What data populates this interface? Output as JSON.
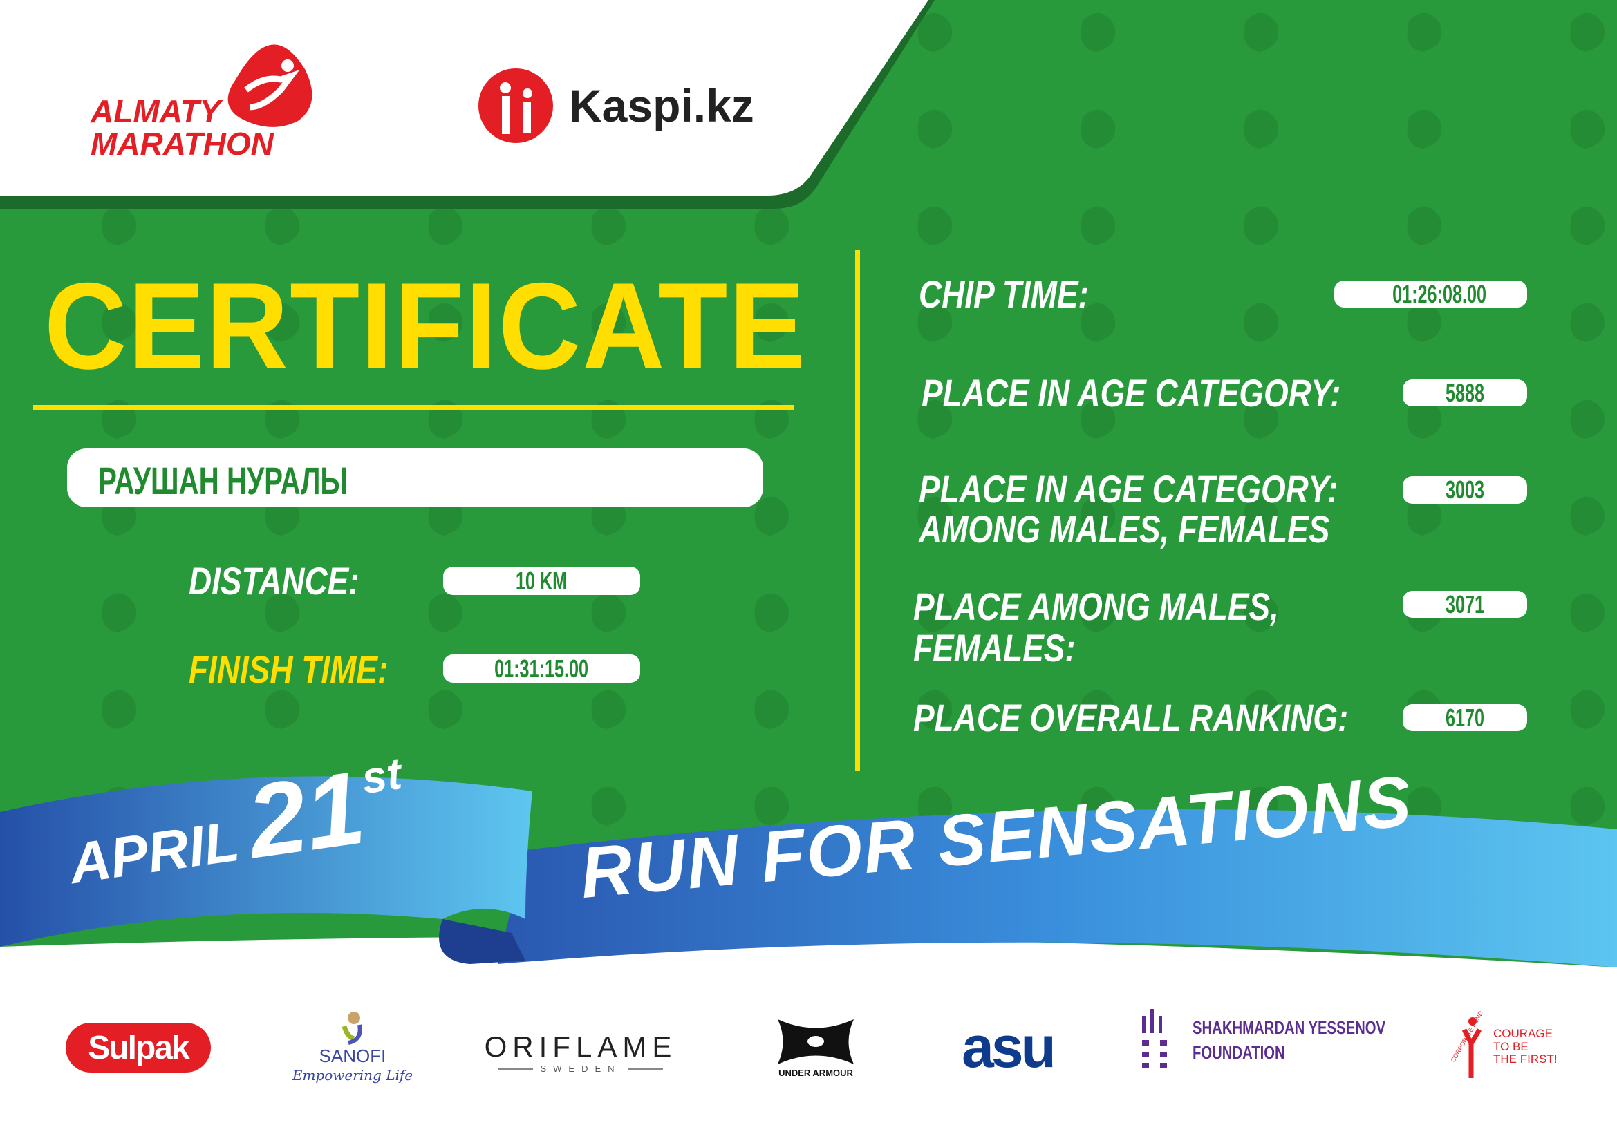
{
  "header": {
    "event_logo": "ALMATY MARATHON",
    "event_logo_lines": [
      "ALMATY",
      "MARATHON"
    ],
    "sponsor_logo": "Kaspi.kz"
  },
  "certificate": {
    "title": "CERTIFICATE",
    "participant_name": "РАУШАН НУРАЛЫ",
    "distance_label": "DISTANCE:",
    "distance_value": "10 KM",
    "finish_time_label": "FINISH TIME:",
    "finish_time_value": "01:31:15.00",
    "chip_time_label": "CHIP TIME:",
    "chip_time_value": "01:26:08.00",
    "age_place_label": "PLACE IN AGE CATEGORY:",
    "age_place_value": "5888",
    "age_gender_place_label_1": "PLACE IN AGE CATEGORY:",
    "age_gender_place_label_2": "AMONG MALES, FEMALES",
    "age_gender_place_value": "3003",
    "gender_place_label_1": "PLACE AMONG MALES,",
    "gender_place_label_2": "FEMALES:",
    "gender_place_value": "3071",
    "overall_label": "PLACE OVERALL RANKING:",
    "overall_value": "6170"
  },
  "banner": {
    "month": "APRIL",
    "day": "21",
    "suffix": "st",
    "slogan": "RUN FOR SENSATIONS"
  },
  "sponsors": [
    {
      "name": "Sulpak"
    },
    {
      "name": "SANOFI",
      "tagline": "Empowering Life"
    },
    {
      "name": "ORIFLAME",
      "tagline": "SWEDEN"
    },
    {
      "name": "UNDER ARMOUR"
    },
    {
      "name": "asu"
    },
    {
      "name": "SHAKHMARDAN YESSENOV",
      "tagline": "FOUNDATION"
    },
    {
      "name": "CORPORATE FUND",
      "tagline_lines": [
        "COURAGE",
        "TO BE",
        "THE FIRST!"
      ]
    }
  ],
  "colors": {
    "green": "#289a3b",
    "dark_green": "#1d6b2a",
    "yellow": "#ffde00",
    "blue": "#2f7fd0",
    "light_blue": "#55c0ee",
    "red": "#e31e24",
    "purple": "#5b2d91"
  }
}
